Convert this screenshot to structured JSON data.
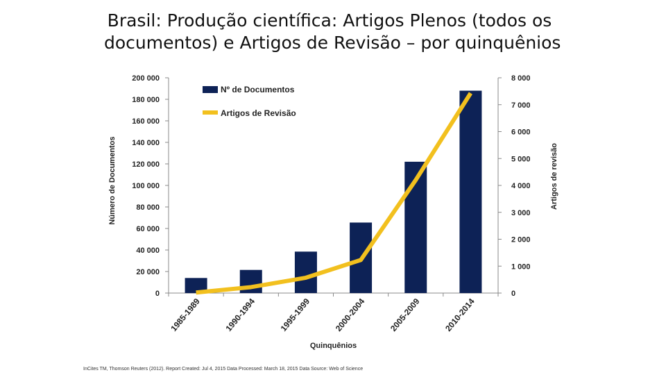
{
  "slide": {
    "title_line1": "Brasil: Produção científica: Artigos Plenos (todos os",
    "title_line2": "documentos) e Artigos de Revisão – por quinquênios",
    "source": "InCites TM, Thomson Reuters (2012). Report Created: Jul 4, 2015 Data Processed: March 18, 2015 Data Source: Web of Science"
  },
  "chart_data": {
    "type": "bar",
    "title": "Brasil: Produção científica: Artigos Plenos (todos os documentos) e Artigos de Revisão – por quinquênios",
    "categories": [
      "1985-1989",
      "1990-1994",
      "1995-1999",
      "2000-2004",
      "2005-2009",
      "2010-2014"
    ],
    "xlabel": "Quinquênios",
    "ylabel": "Número de Documentos",
    "y2label": "Artigos de revisão",
    "ylim": [
      0,
      200000
    ],
    "y2lim": [
      0,
      8000
    ],
    "yticks": [
      "0",
      "20 000",
      "40 000",
      "60 000",
      "80 000",
      "100 000",
      "120 000",
      "140 000",
      "160 000",
      "180 000",
      "200 000"
    ],
    "y2ticks": [
      "0",
      "1 000",
      "2 000",
      "3 000",
      "4 000",
      "5 000",
      "6 000",
      "7 000",
      "8 000"
    ],
    "legend_position": "top-left",
    "grid": false,
    "series": [
      {
        "name": "Nº de Documentos",
        "kind": "bar",
        "axis": "left",
        "color": "#0d2256",
        "values": [
          14000,
          21500,
          38500,
          65500,
          122000,
          188000
        ]
      },
      {
        "name": "Artigos de Revisão",
        "kind": "line",
        "axis": "right",
        "color": "#f2c01e",
        "values": [
          20,
          220,
          570,
          1230,
          4200,
          7430
        ]
      }
    ]
  }
}
